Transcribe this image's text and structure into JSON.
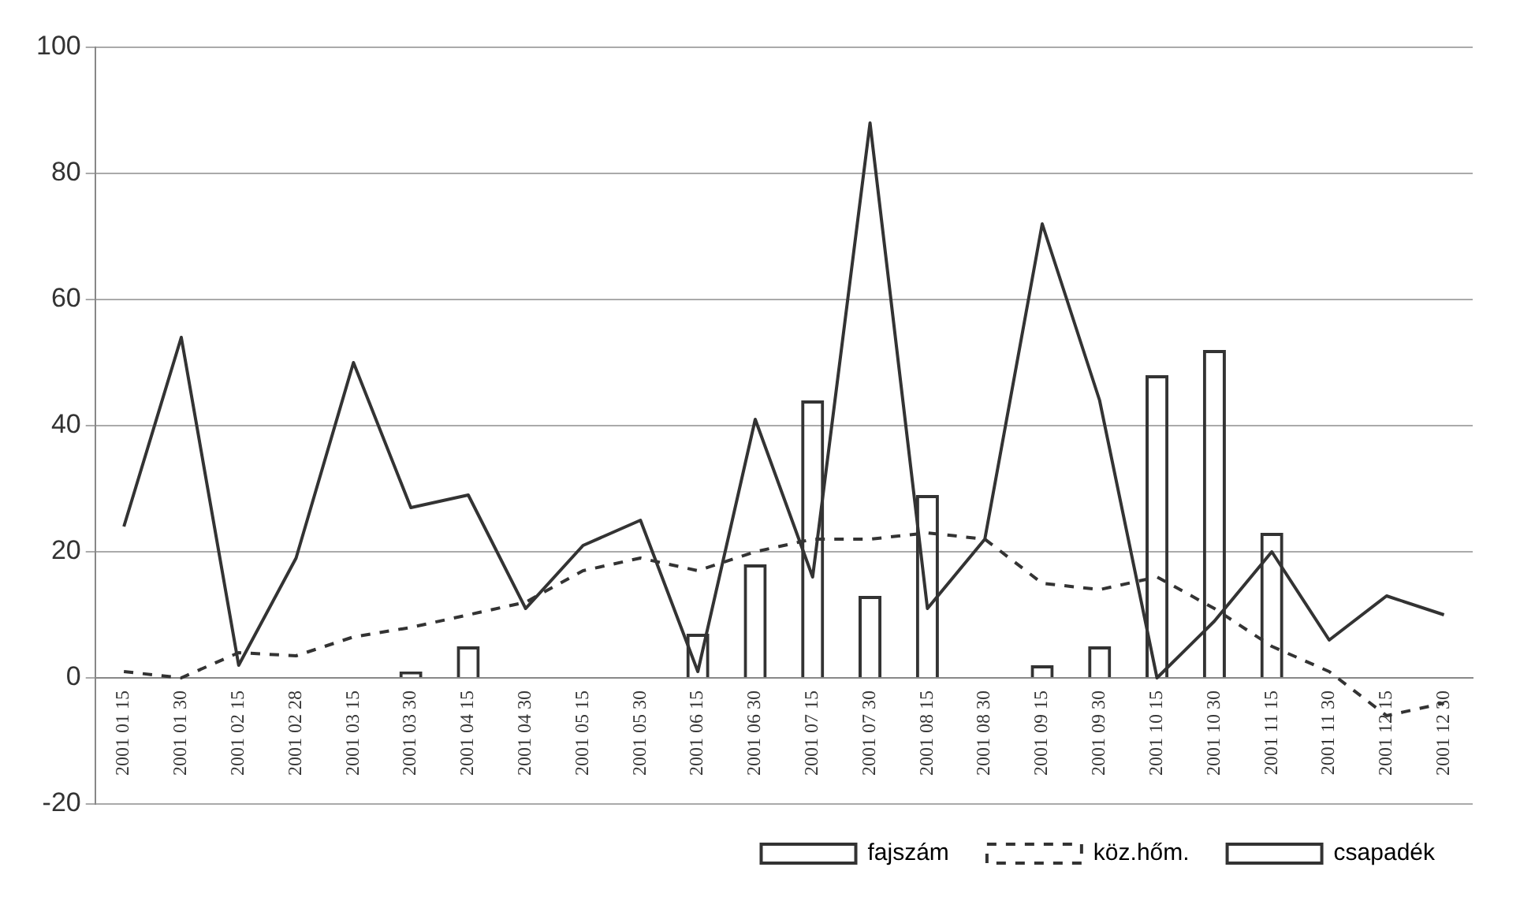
{
  "chart_data": {
    "type": "bar",
    "categories": [
      "2001 01 15",
      "2001 01 30",
      "2001 02 15",
      "2001 02 28",
      "2001 03 15",
      "2001 03 30",
      "2001 04 15",
      "2001 04 30",
      "2001 05 15",
      "2001 05 30",
      "2001 06 15",
      "2001 06 30",
      "2001 07 15",
      "2001 07 30",
      "2001 08 15",
      "2001 08 30",
      "2001 09 15",
      "2001 09 30",
      "2001 10 15",
      "2001 10 30",
      "2001 11 15",
      "2001 11 30",
      "2001 12 15",
      "2001 12 30"
    ],
    "series": [
      {
        "name": "fajszám",
        "color": "#333333",
        "values": [
          null,
          null,
          null,
          null,
          null,
          1,
          5,
          null,
          null,
          null,
          7,
          18,
          44,
          13,
          29,
          null,
          2,
          5,
          48,
          52,
          23,
          null,
          null,
          null
        ]
      },
      {
        "name": "köz.hőm.",
        "type": "line",
        "line_style": "dashed",
        "color": "#333333",
        "values": [
          1,
          0,
          4,
          3.5,
          6.5,
          8,
          10,
          12,
          17,
          19,
          17,
          20,
          22,
          22,
          23,
          22,
          15,
          14,
          16,
          11,
          5,
          1,
          -6,
          -4
        ]
      },
      {
        "name": "csapadék",
        "type": "line",
        "line_style": "solid",
        "color": "#333333",
        "values": [
          24,
          54,
          2,
          19,
          50,
          27,
          29,
          11,
          21,
          25,
          1,
          41,
          16,
          88,
          11,
          22,
          72,
          44,
          0,
          9,
          20,
          6,
          13,
          10
        ]
      }
    ],
    "ylim": [
      -20,
      100
    ],
    "yticks": [
      -20,
      0,
      20,
      40,
      60,
      80,
      100
    ],
    "grid": "y",
    "legend": "bottom right",
    "marker": "none"
  }
}
